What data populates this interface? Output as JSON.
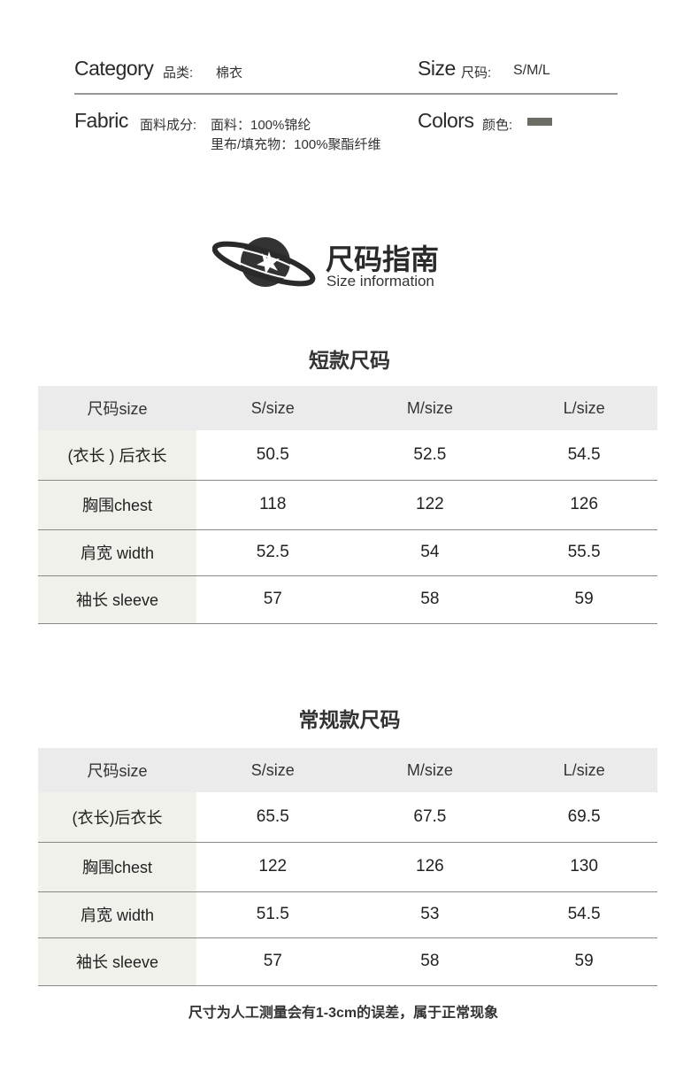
{
  "info": {
    "category_en": "Category",
    "category_zh": "品类:",
    "category_value": "棉衣",
    "size_en": "Size",
    "size_zh": "尺码:",
    "size_value": "S/M/L",
    "fabric_en": "Fabric",
    "fabric_zh": "面料成分:",
    "fabric_line1": "面料：100%锦纶",
    "fabric_line2": "里布/填充物：100%聚酯纤维",
    "colors_en": "Colors",
    "colors_zh": "颜色:",
    "color_swatch": "#6b6c63"
  },
  "guide": {
    "title_zh": "尺码指南",
    "title_en": "Size information",
    "icon": "planet-icon"
  },
  "tables": [
    {
      "title": "短款尺码",
      "headers": [
        "尺码size",
        "S/size",
        "M/size",
        "L/size"
      ],
      "rows": [
        [
          "(衣长 ) 后衣长",
          "50.5",
          "52.5",
          "54.5"
        ],
        [
          "胸围chest",
          "118",
          "122",
          "126"
        ],
        [
          "肩宽 width",
          "52.5",
          "54",
          "55.5"
        ],
        [
          "袖长 sleeve",
          "57",
          "58",
          "59"
        ]
      ]
    },
    {
      "title": "常规款尺码",
      "headers": [
        "尺码size",
        "S/size",
        "M/size",
        "L/size"
      ],
      "rows": [
        [
          "(衣长)后衣长",
          "65.5",
          "67.5",
          "69.5"
        ],
        [
          "胸围chest",
          "122",
          "126",
          "130"
        ],
        [
          "肩宽 width",
          "51.5",
          "53",
          "54.5"
        ],
        [
          "袖长 sleeve",
          "57",
          "58",
          "59"
        ]
      ]
    }
  ],
  "note": "尺寸为人工测量会有1-3cm的误差，属于正常现象"
}
